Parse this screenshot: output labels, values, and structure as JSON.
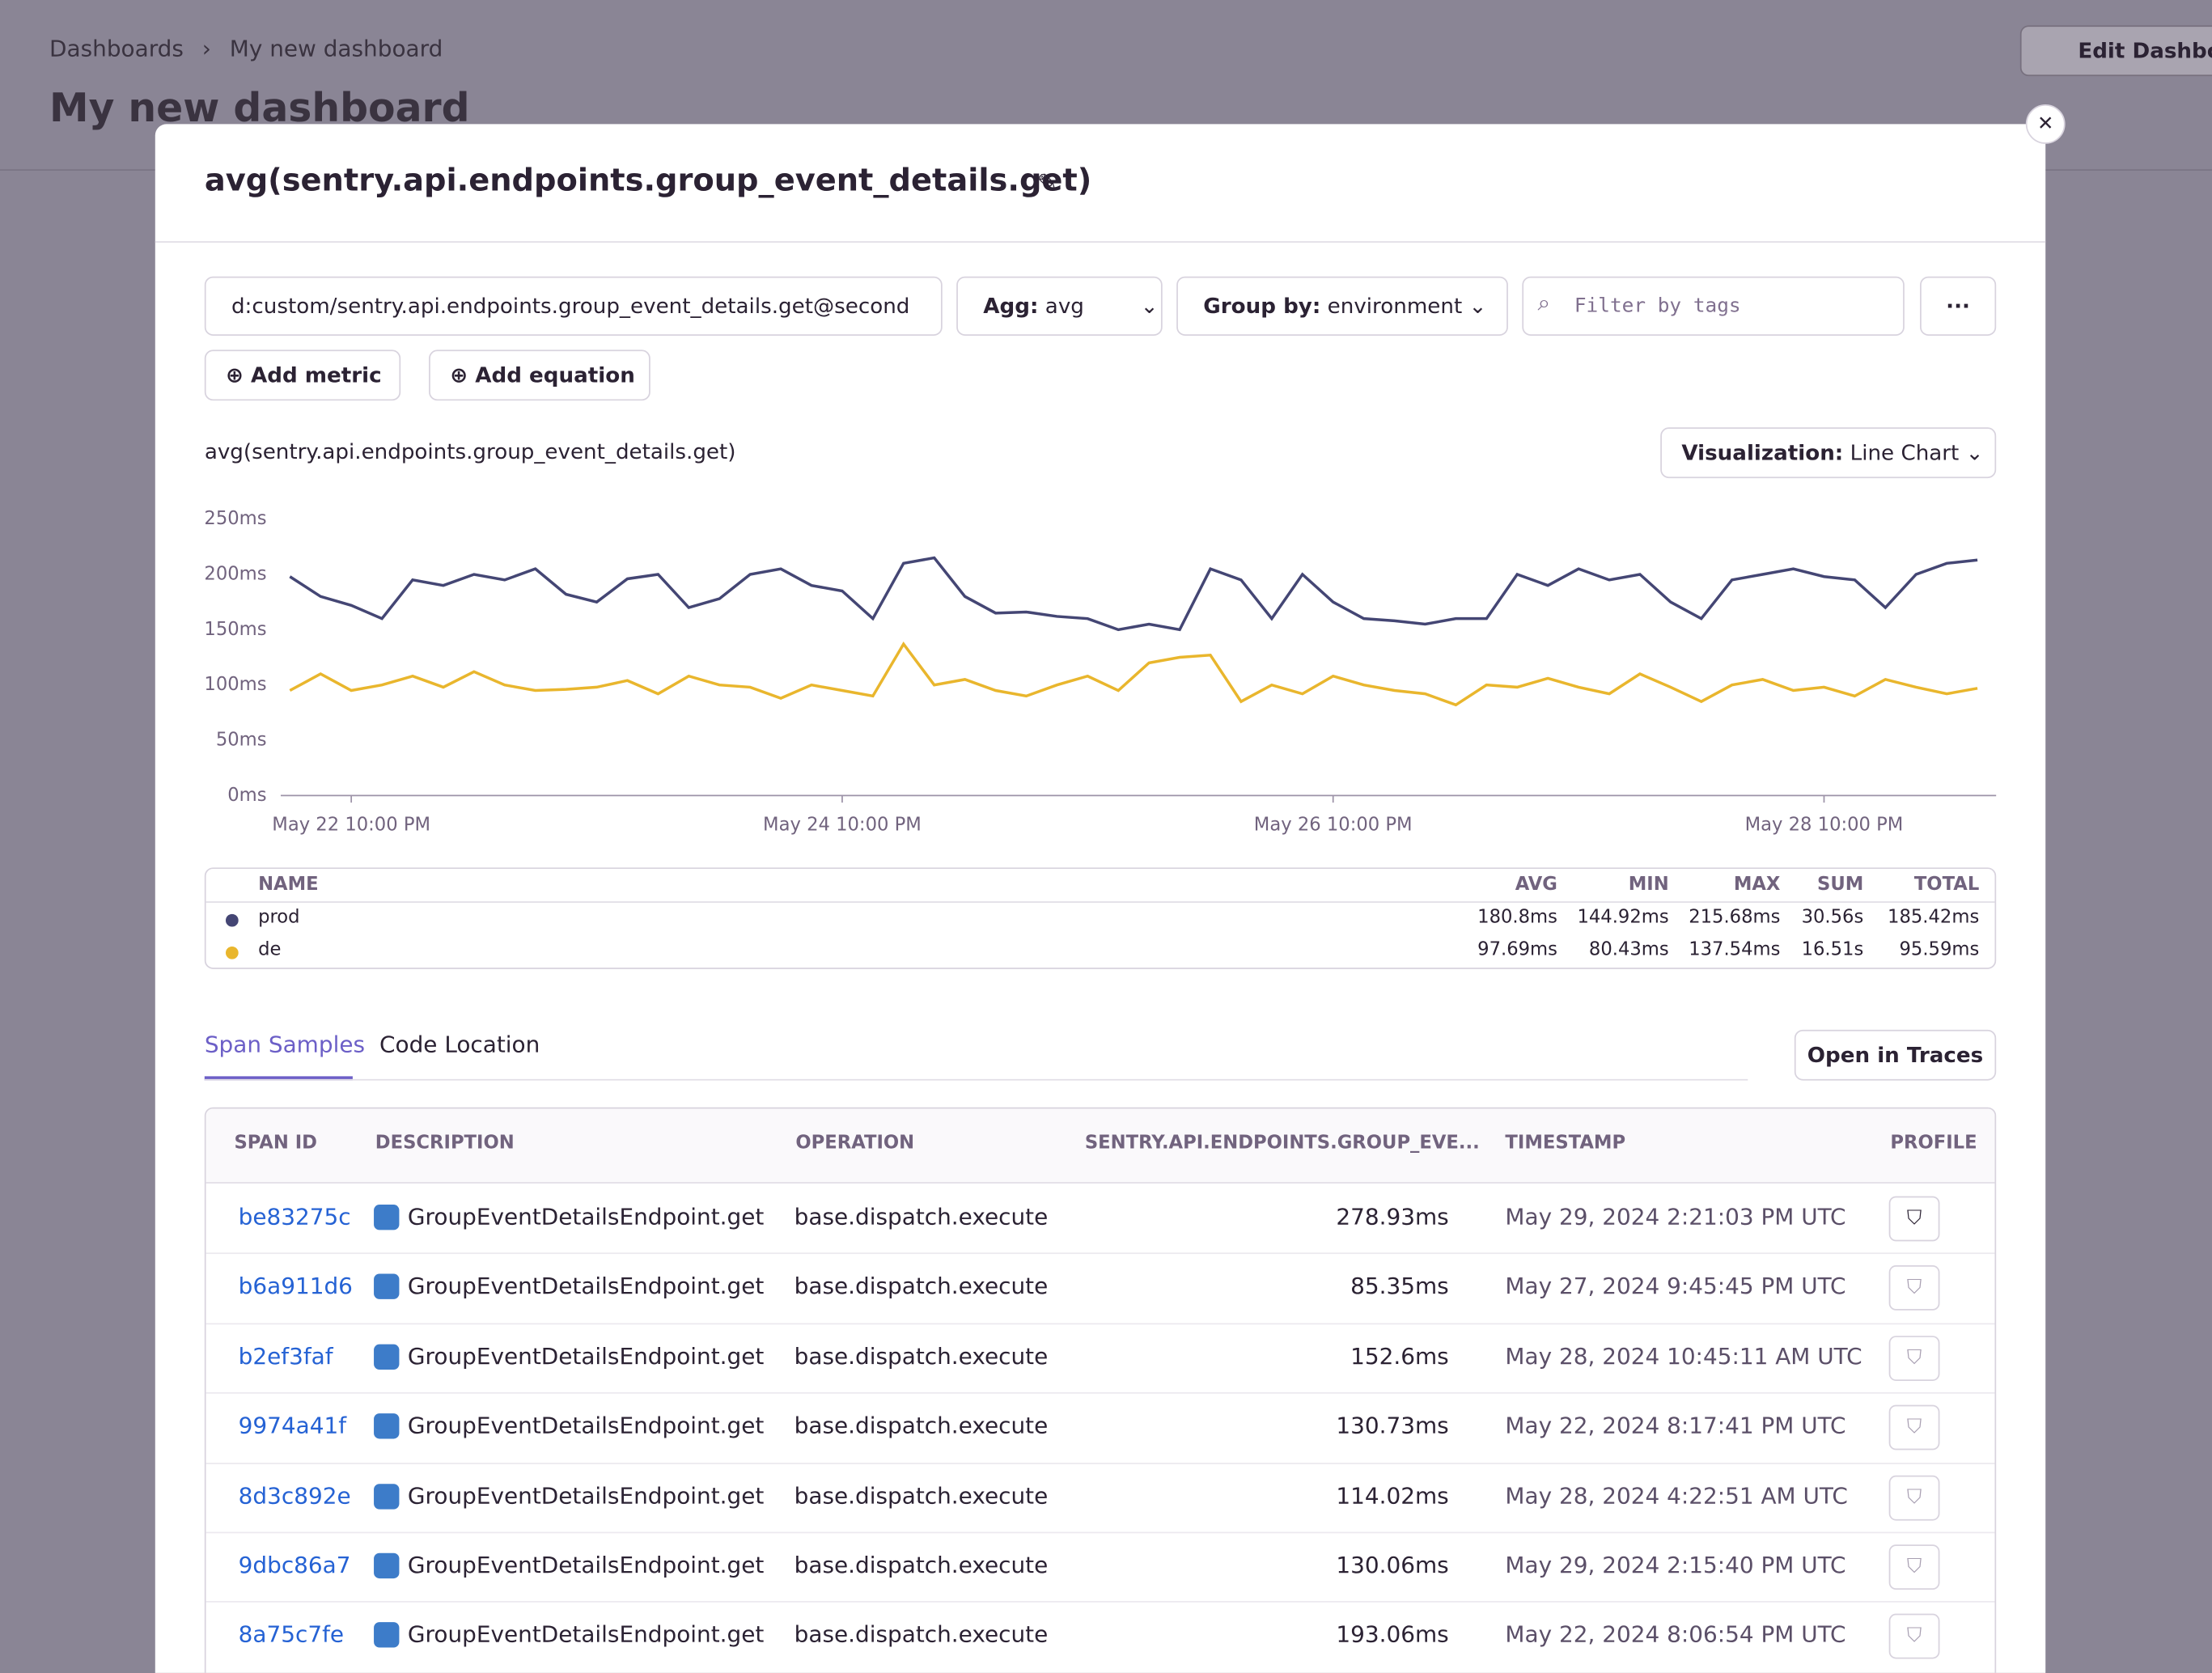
{
  "background": {
    "breadcrumb": [
      "Dashboards",
      "My new dashboard"
    ],
    "title": "My new dashboard",
    "edit_button": "Edit Dashboard"
  },
  "modal": {
    "title": "avg(sentry.api.endpoints.group_event_details.get)",
    "query": {
      "metric": "d:custom/sentry.api.endpoints.group_event_details.get@second",
      "agg_label": "Agg:",
      "agg": "avg",
      "group_label": "Group by:",
      "group": "environment",
      "filter_placeholder": "Filter by tags"
    },
    "add_metric": "Add metric",
    "add_equation": "Add equation",
    "visualization_label": "Visualization:",
    "visualization": "Line Chart"
  },
  "chart_data": {
    "type": "line",
    "title": "avg(sentry.api.endpoints.group_event_details.get)",
    "categories": [
      null,
      null,
      "May 22 10:00 PM",
      null,
      null,
      null,
      null,
      null,
      null,
      null,
      null,
      null,
      null,
      null,
      null,
      null,
      null,
      null,
      "May 24 10:00 PM",
      null,
      null,
      null,
      null,
      null,
      null,
      null,
      null,
      null,
      null,
      null,
      null,
      null,
      null,
      null,
      "May 26 10:00 PM",
      null,
      null,
      null,
      null,
      null,
      null,
      null,
      null,
      null,
      null,
      null,
      null,
      null,
      null,
      null,
      "May 28 10:00 PM",
      null,
      null,
      null,
      null,
      null
    ],
    "series": [
      {
        "name": "prod",
        "color": "#444674",
        "values": [
          198,
          180,
          172,
          160,
          195,
          190,
          200,
          195,
          205,
          182,
          175,
          196,
          200,
          170,
          178,
          200,
          205,
          190,
          185,
          160,
          210,
          215,
          180,
          165,
          166,
          162,
          160,
          150,
          155,
          150,
          205,
          195,
          160,
          200,
          175,
          160,
          158,
          155,
          160,
          160,
          200,
          190,
          205,
          195,
          200,
          175,
          160,
          195,
          200,
          205,
          198,
          195,
          170,
          200,
          210,
          213
        ]
      },
      {
        "name": "de",
        "color": "#e9b62d",
        "values": [
          95,
          110,
          95,
          100,
          108,
          98,
          112,
          100,
          95,
          96,
          98,
          104,
          92,
          108,
          100,
          98,
          88,
          100,
          95,
          90,
          137,
          100,
          105,
          95,
          90,
          100,
          108,
          95,
          120,
          125,
          127,
          85,
          100,
          92,
          108,
          100,
          95,
          92,
          82,
          100,
          98,
          106,
          98,
          92,
          110,
          98,
          85,
          100,
          105,
          95,
          98,
          90,
          105,
          98,
          92,
          97
        ]
      }
    ],
    "ylim": [
      0,
      250
    ],
    "yticks": [
      {
        "value": 0,
        "label": "0ms"
      },
      {
        "value": 50,
        "label": "50ms"
      },
      {
        "value": 100,
        "label": "100ms"
      },
      {
        "value": 150,
        "label": "150ms"
      },
      {
        "value": 200,
        "label": "200ms"
      },
      {
        "value": 250,
        "label": "250ms"
      }
    ]
  },
  "summary": {
    "columns": [
      "NAME",
      "AVG",
      "MIN",
      "MAX",
      "SUM",
      "TOTAL"
    ],
    "rows": [
      [
        "prod",
        "180.8ms",
        "144.92ms",
        "215.68ms",
        "30.56s",
        "185.42ms"
      ],
      [
        "de",
        "97.69ms",
        "80.43ms",
        "137.54ms",
        "16.51s",
        "95.59ms"
      ]
    ]
  },
  "tabs": [
    "Span Samples",
    "Code Location"
  ],
  "open_in_traces": "Open in Traces",
  "spans": {
    "columns": [
      "SPAN ID",
      "DESCRIPTION",
      "OPERATION",
      "SENTRY.API.ENDPOINTS.GROUP_EVE...",
      "TIMESTAMP",
      "PROFILE"
    ],
    "rows": [
      [
        "be83275c",
        "GroupEventDetailsEndpoint.get",
        "base.dispatch.execute",
        "278.93ms",
        "May 29, 2024 2:21:03 PM UTC"
      ],
      [
        "b6a911d6",
        "GroupEventDetailsEndpoint.get",
        "base.dispatch.execute",
        "85.35ms",
        "May 27, 2024 9:45:45 PM UTC"
      ],
      [
        "b2ef3faf",
        "GroupEventDetailsEndpoint.get",
        "base.dispatch.execute",
        "152.6ms",
        "May 28, 2024 10:45:11 AM UTC"
      ],
      [
        "9974a41f",
        "GroupEventDetailsEndpoint.get",
        "base.dispatch.execute",
        "130.73ms",
        "May 22, 2024 8:17:41 PM UTC"
      ],
      [
        "8d3c892e",
        "GroupEventDetailsEndpoint.get",
        "base.dispatch.execute",
        "114.02ms",
        "May 28, 2024 4:22:51 AM UTC"
      ],
      [
        "9dbc86a7",
        "GroupEventDetailsEndpoint.get",
        "base.dispatch.execute",
        "130.06ms",
        "May 29, 2024 2:15:40 PM UTC"
      ],
      [
        "8a75c7fe",
        "GroupEventDetailsEndpoint.get",
        "base.dispatch.execute",
        "193.06ms",
        "May 22, 2024 8:06:54 PM UTC"
      ]
    ]
  }
}
